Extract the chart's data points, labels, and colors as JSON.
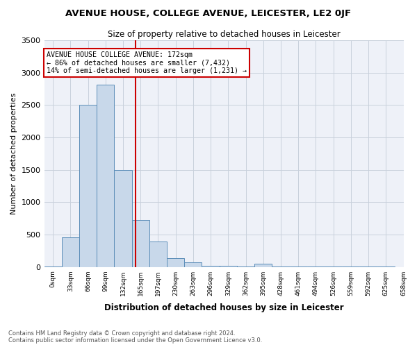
{
  "title": "AVENUE HOUSE, COLLEGE AVENUE, LEICESTER, LE2 0JF",
  "subtitle": "Size of property relative to detached houses in Leicester",
  "xlabel": "Distribution of detached houses by size in Leicester",
  "ylabel": "Number of detached properties",
  "bar_color": "#c8d8ea",
  "bar_edge_color": "#5b8db8",
  "grid_color": "#c8d0dc",
  "bg_color": "#eef1f8",
  "vline_color": "#cc0000",
  "vline_x": 172,
  "annotation_line1": "AVENUE HOUSE COLLEGE AVENUE: 172sqm",
  "annotation_line2": "← 86% of detached houses are smaller (7,432)",
  "annotation_line3": "14% of semi-detached houses are larger (1,231) →",
  "annotation_box_color": "#ffffff",
  "annotation_box_edge": "#cc0000",
  "footer_line1": "Contains HM Land Registry data © Crown copyright and database right 2024.",
  "footer_line2": "Contains public sector information licensed under the Open Government Licence v3.0.",
  "bin_edges": [
    0,
    33,
    66,
    99,
    132,
    165,
    198,
    231,
    264,
    297,
    330,
    363,
    396,
    429,
    462,
    495,
    528,
    561,
    594,
    627,
    660
  ],
  "bin_labels": [
    "0sqm",
    "33sqm",
    "66sqm",
    "99sqm",
    "132sqm",
    "165sqm",
    "197sqm",
    "230sqm",
    "263sqm",
    "296sqm",
    "329sqm",
    "362sqm",
    "395sqm",
    "428sqm",
    "461sqm",
    "494sqm",
    "526sqm",
    "559sqm",
    "592sqm",
    "625sqm",
    "658sqm"
  ],
  "bar_heights": [
    10,
    460,
    2500,
    2820,
    1500,
    730,
    390,
    135,
    70,
    20,
    15,
    10,
    50,
    10,
    5,
    5,
    5,
    5,
    5,
    5
  ],
  "ylim": [
    0,
    3500
  ],
  "yticks": [
    0,
    500,
    1000,
    1500,
    2000,
    2500,
    3000,
    3500
  ]
}
